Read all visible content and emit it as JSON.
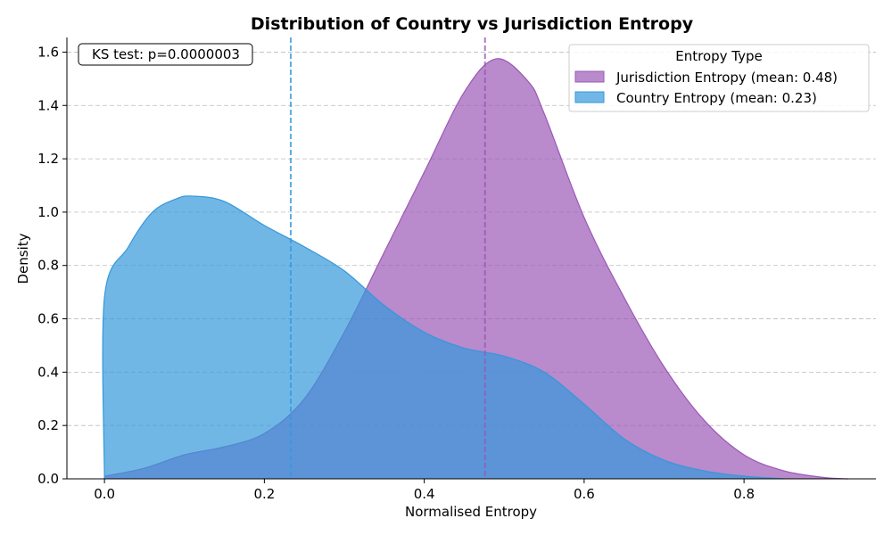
{
  "chart_data": {
    "type": "area",
    "title": "Distribution of Country vs Jurisdiction Entropy",
    "xlabel": "Normalised Entropy",
    "ylabel": "Density",
    "xlim": [
      -0.047,
      0.965
    ],
    "ylim": [
      0,
      1.655
    ],
    "xticks": [
      0.0,
      0.2,
      0.4,
      0.6,
      0.8
    ],
    "xtick_labels": [
      "0.0",
      "0.2",
      "0.4",
      "0.6",
      "0.8"
    ],
    "yticks": [
      0.0,
      0.2,
      0.4,
      0.6,
      0.8,
      1.0,
      1.2,
      1.4,
      1.6
    ],
    "ytick_labels": [
      "0.0",
      "0.2",
      "0.4",
      "0.6",
      "0.8",
      "1.0",
      "1.2",
      "1.4",
      "1.6"
    ],
    "grid": "y-dashed",
    "legend": {
      "title": "Entropy Type",
      "position": "top-right",
      "entries": [
        {
          "label": "Jurisdiction Entropy (mean: 0.48)",
          "color": "#9b59b6"
        },
        {
          "label": "Country Entropy (mean: 0.23)",
          "color": "#3498db"
        }
      ]
    },
    "annotation": "KS test: p=0.0000003",
    "series": [
      {
        "name": "Jurisdiction Entropy (mean: 0.48)",
        "color": "#9b59b6",
        "mean": 0.476,
        "x": [
          0.0,
          0.05,
          0.1,
          0.15,
          0.2,
          0.25,
          0.3,
          0.35,
          0.4,
          0.45,
          0.49,
          0.53,
          0.55,
          0.6,
          0.65,
          0.7,
          0.75,
          0.8,
          0.85,
          0.9,
          0.93
        ],
        "y": [
          0.01,
          0.04,
          0.09,
          0.12,
          0.17,
          0.3,
          0.55,
          0.85,
          1.15,
          1.45,
          1.575,
          1.49,
          1.37,
          0.98,
          0.68,
          0.42,
          0.22,
          0.09,
          0.03,
          0.005,
          0.0
        ]
      },
      {
        "name": "Country Entropy (mean: 0.23)",
        "color": "#3498db",
        "mean": 0.233,
        "x": [
          0.0,
          0.0,
          0.03,
          0.06,
          0.09,
          0.11,
          0.15,
          0.2,
          0.25,
          0.3,
          0.35,
          0.4,
          0.45,
          0.5,
          0.55,
          0.6,
          0.65,
          0.7,
          0.75,
          0.8,
          0.85
        ],
        "y": [
          0.0,
          0.68,
          0.87,
          1.0,
          1.05,
          1.06,
          1.04,
          0.95,
          0.87,
          0.78,
          0.65,
          0.55,
          0.49,
          0.46,
          0.4,
          0.28,
          0.15,
          0.07,
          0.03,
          0.01,
          0.0
        ]
      }
    ]
  }
}
